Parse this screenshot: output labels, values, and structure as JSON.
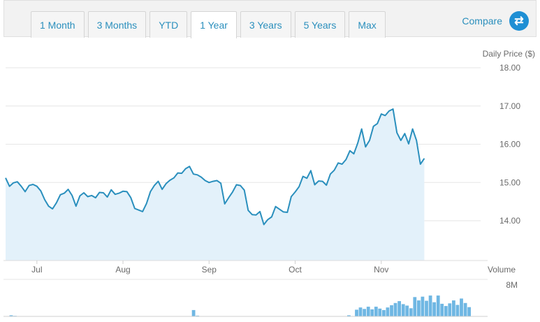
{
  "range_tabs": [
    "1 Month",
    "3 Months",
    "YTD",
    "1 Year",
    "3 Years",
    "5 Years",
    "Max"
  ],
  "active_tab": "1 Year",
  "compare": {
    "label": "Compare",
    "icon": "swap-arrows-icon"
  },
  "colors": {
    "accent": "#2a8fbd",
    "line": "#2a8fbd",
    "area": "#e3f1fa",
    "volume": "#6fb7e3"
  },
  "chart_data": [
    {
      "type": "area",
      "ylabel": "Daily Price ($)",
      "ylim": [
        13.2,
        18.2
      ],
      "yticks": [
        "18.00",
        "17.00",
        "16.00",
        "15.00",
        "14.00"
      ],
      "ytick_values": [
        18,
        17,
        16,
        15,
        14
      ],
      "xticks": [
        "Jul",
        "Aug",
        "Sep",
        "Oct",
        "Nov"
      ],
      "x_range": [
        0,
        123
      ],
      "xtick_positions": [
        8,
        30,
        52,
        74,
        96
      ],
      "grid": true,
      "values": [
        15.12,
        14.9,
        14.99,
        15.02,
        14.9,
        14.76,
        14.92,
        14.95,
        14.9,
        14.78,
        14.55,
        14.38,
        14.31,
        14.47,
        14.68,
        14.72,
        14.82,
        14.66,
        14.38,
        14.65,
        14.73,
        14.63,
        14.66,
        14.6,
        14.74,
        14.73,
        14.62,
        14.81,
        14.69,
        14.72,
        14.77,
        14.76,
        14.6,
        14.32,
        14.28,
        14.24,
        14.45,
        14.76,
        14.92,
        15.03,
        14.82,
        14.97,
        15.06,
        15.12,
        15.25,
        15.24,
        15.36,
        15.42,
        15.22,
        15.2,
        15.14,
        15.05,
        15.0,
        15.03,
        15.05,
        14.98,
        14.44,
        14.6,
        14.75,
        14.94,
        14.92,
        14.8,
        14.27,
        14.16,
        14.15,
        14.24,
        13.9,
        14.03,
        14.1,
        14.37,
        14.3,
        14.23,
        14.22,
        14.63,
        14.75,
        14.89,
        15.16,
        15.11,
        15.31,
        14.94,
        15.04,
        15.03,
        14.93,
        15.22,
        15.32,
        15.51,
        15.48,
        15.6,
        15.83,
        15.75,
        16.03,
        16.4,
        15.93,
        16.1,
        16.47,
        16.54,
        16.79,
        16.75,
        16.87,
        16.92,
        16.3,
        16.1,
        16.28,
        16.01,
        16.4,
        16.1,
        15.48,
        15.63
      ]
    },
    {
      "type": "bar",
      "ylabel": "Volume",
      "yticks": [
        "8M"
      ],
      "ytick_values": [
        8
      ],
      "ylim": [
        0,
        9
      ],
      "values": [
        0.1,
        0.3,
        0.15,
        0.1,
        0.1,
        0.1,
        0.1,
        0.1,
        0.1,
        0.1,
        0.1,
        0.1,
        0.1,
        0.1,
        0.1,
        0.1,
        0.1,
        0.1,
        0.1,
        0.1,
        0.1,
        0.1,
        0.1,
        0.1,
        0.1,
        0.1,
        0.1,
        0.1,
        0.1,
        0.1,
        0.1,
        0.1,
        0.1,
        0.1,
        0.1,
        0.1,
        0.1,
        0.1,
        0.1,
        0.1,
        0.1,
        0.1,
        0.1,
        0.1,
        0.1,
        0.1,
        0.1,
        0.1,
        1.7,
        0.2,
        0.1,
        0.1,
        0.1,
        0.1,
        0.1,
        0.1,
        0.1,
        0.1,
        0.1,
        0.1,
        0.1,
        0.1,
        0.1,
        0.1,
        0.1,
        0.1,
        0.1,
        0.1,
        0.1,
        0.1,
        0.1,
        0.1,
        0.1,
        0.1,
        0.1,
        0.1,
        0.1,
        0.1,
        0.1,
        0.1,
        0.1,
        0.1,
        0.1,
        0.1,
        0.1,
        0.1,
        0.1,
        0.1,
        0.3,
        0.1,
        1.8,
        2.4,
        2.0,
        2.6,
        1.9,
        2.6,
        2.1,
        1.7,
        2.4,
        3.0,
        3.6,
        4.1,
        3.3,
        2.9,
        2.2,
        5.2,
        4.3,
        5.3,
        4.2,
        5.6,
        3.8,
        5.6,
        3.4,
        2.8,
        3.5,
        4.3,
        3.1,
        4.8,
        3.6,
        2.5,
        0,
        0,
        0,
        0
      ]
    }
  ]
}
